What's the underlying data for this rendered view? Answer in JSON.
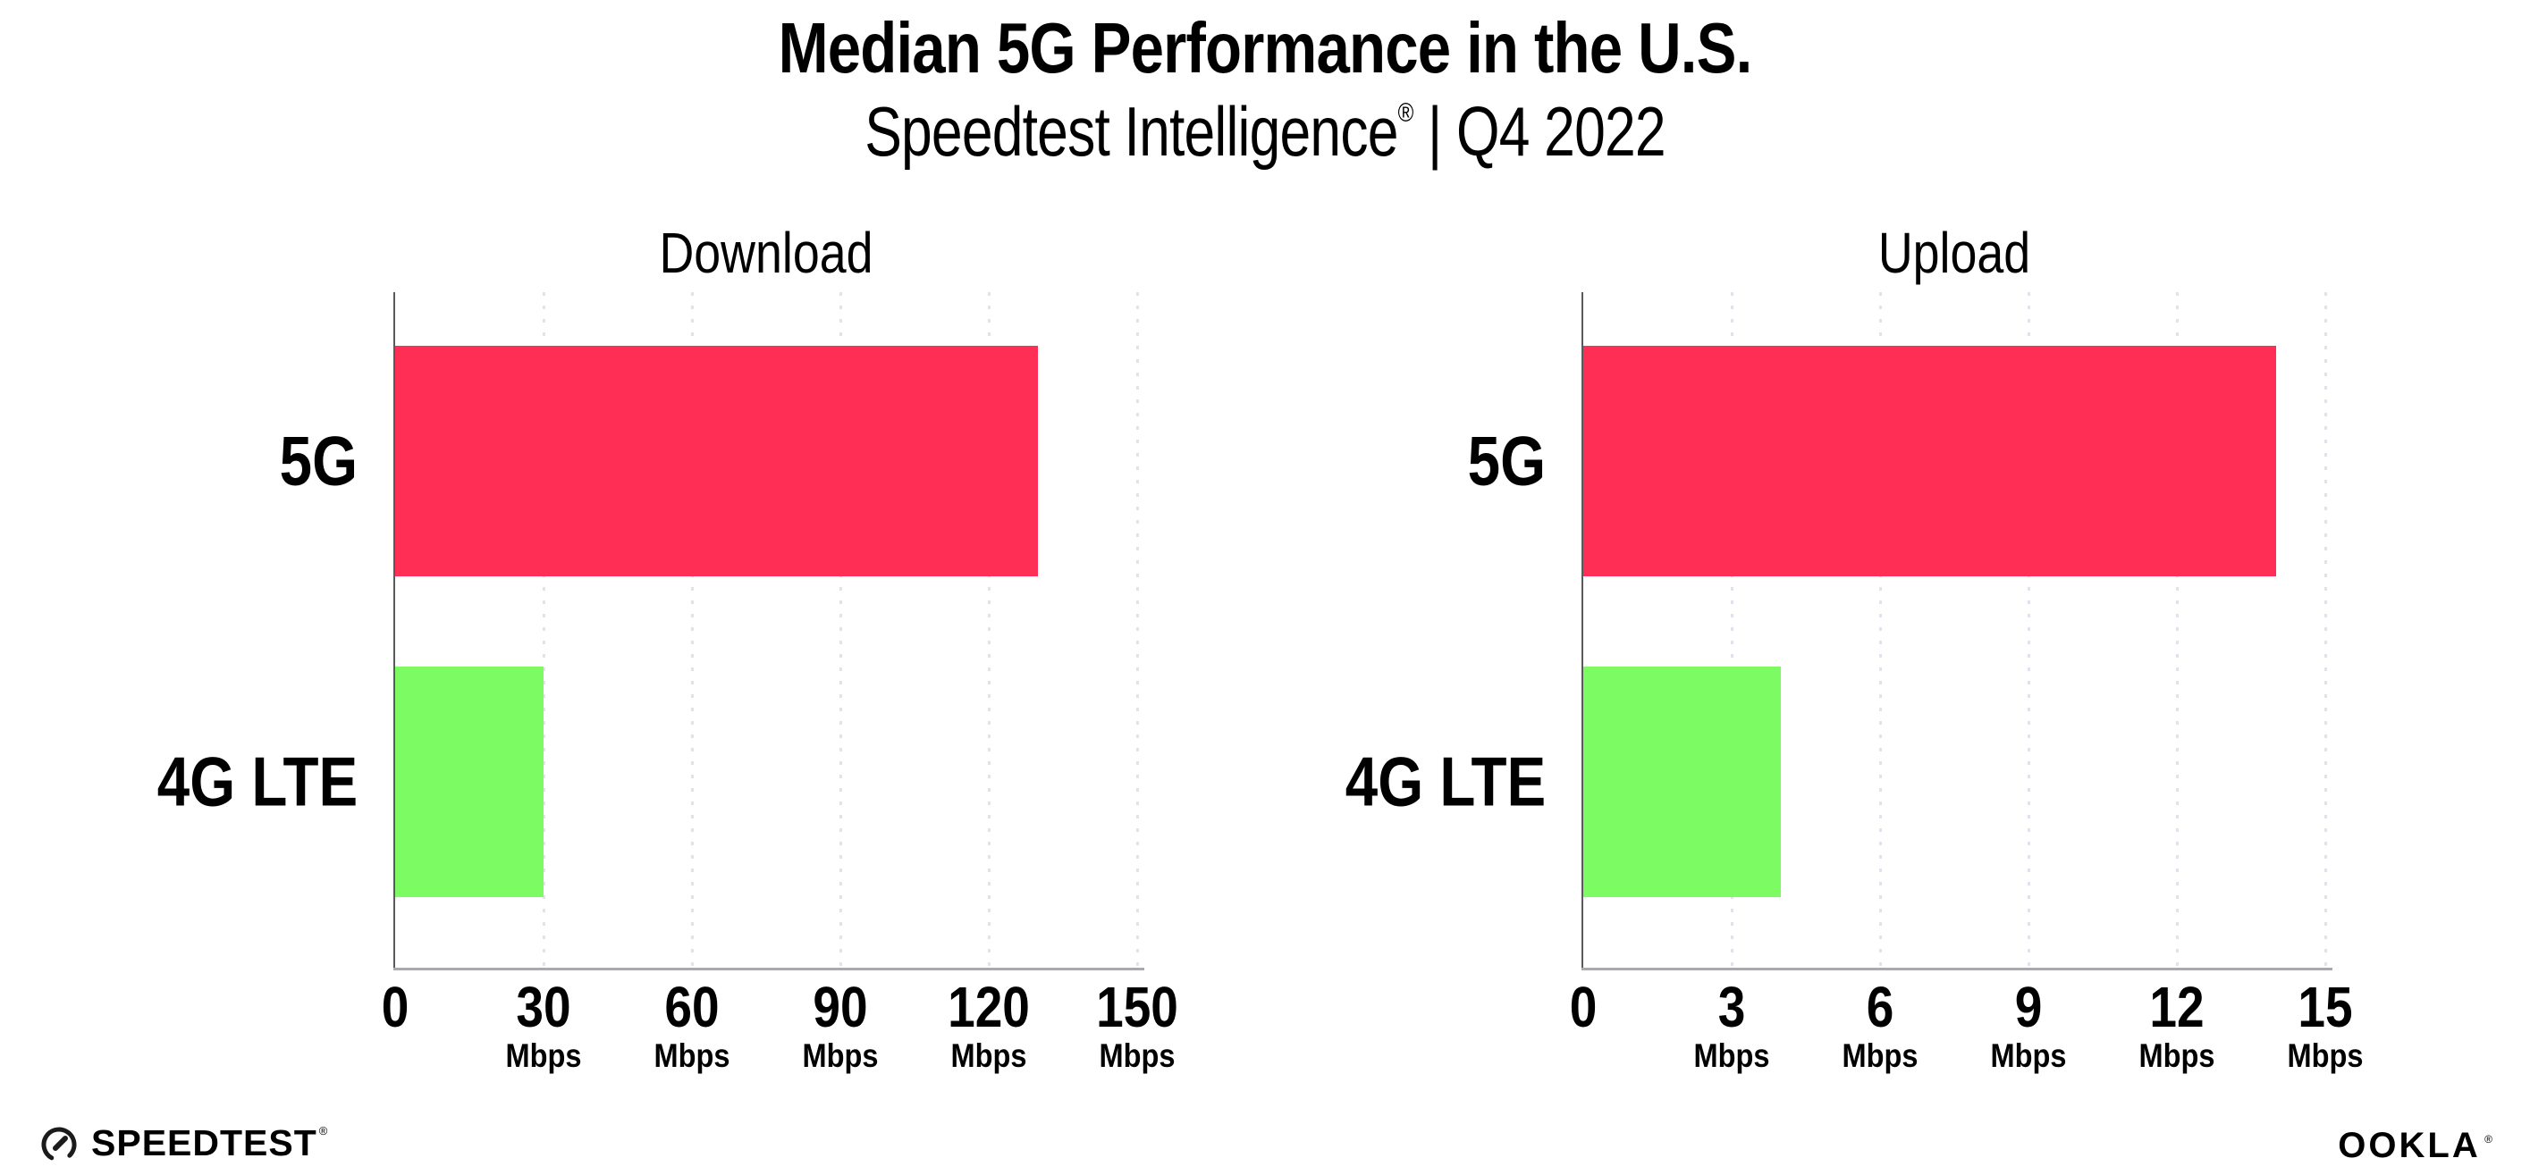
{
  "header": {
    "title": "Median 5G Performance in the U.S.",
    "subtitle_brand": "Speedtest Intelligence",
    "subtitle_reg": "®",
    "subtitle_rest": " | Q4 2022"
  },
  "chart_data": {
    "type": "bar",
    "orientation": "horizontal",
    "categories": [
      "5G",
      "4G LTE"
    ],
    "bar_colors": [
      "#ff2e55",
      "#7cfb62"
    ],
    "grid": "vertical-dotted",
    "legend_position": "none",
    "panels": [
      {
        "title": "Download",
        "unit_label": "Mbps",
        "xlim": [
          0,
          150
        ],
        "tick_values": [
          0,
          30,
          60,
          90,
          120,
          150
        ],
        "values": [
          130,
          30
        ]
      },
      {
        "title": "Upload",
        "unit_label": "Mbps",
        "xlim": [
          0,
          15
        ],
        "tick_values": [
          0,
          3,
          6,
          9,
          12,
          15
        ],
        "values": [
          14,
          4
        ]
      }
    ]
  },
  "footer": {
    "speedtest_label": "SPEEDTEST",
    "speedtest_reg": "®",
    "ookla_label": "OOKLA",
    "ookla_reg": "®"
  }
}
